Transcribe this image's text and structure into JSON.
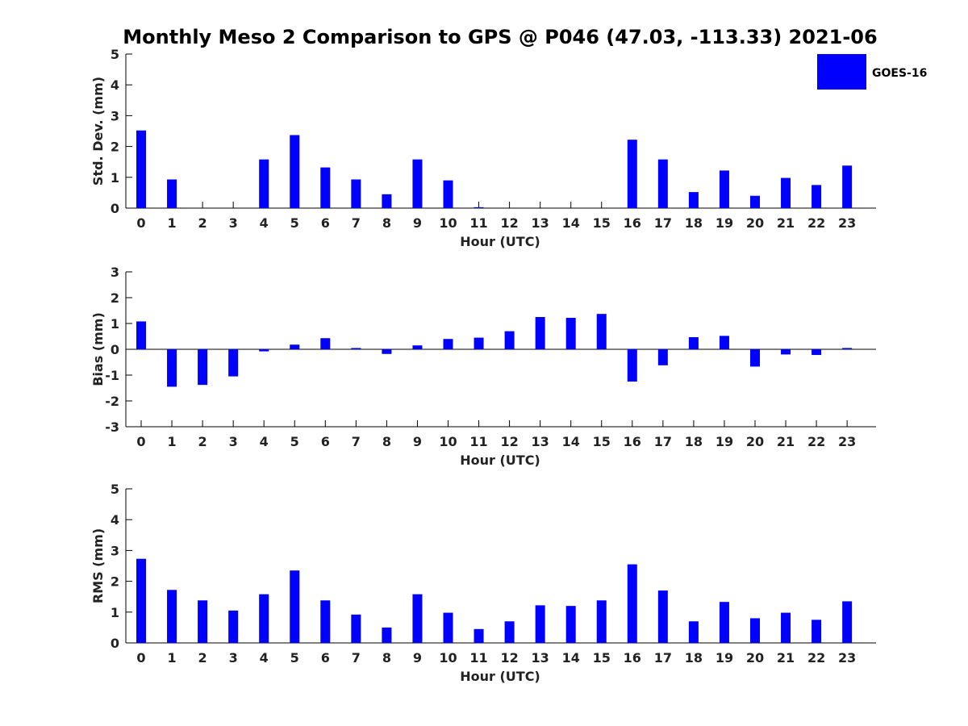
{
  "figure": {
    "title": "Monthly Meso 2 Comparison to GPS @ P046 (47.03, -113.33) 2021-06",
    "legend": {
      "label": "GOES-16",
      "position": "top-right"
    }
  },
  "colors": {
    "bar": "#0000ff",
    "axis": "#000000",
    "text": "#222222",
    "background": "#ffffff"
  },
  "chart_data": [
    {
      "type": "bar",
      "xlabel": "Hour (UTC)",
      "ylabel": "Std. Dev. (mm)",
      "categories": [
        "0",
        "1",
        "2",
        "3",
        "4",
        "5",
        "6",
        "7",
        "8",
        "9",
        "10",
        "11",
        "12",
        "13",
        "14",
        "15",
        "16",
        "17",
        "18",
        "19",
        "20",
        "21",
        "22",
        "23"
      ],
      "series": [
        {
          "name": "GOES-16",
          "values": [
            2.52,
            0.93,
            0,
            0,
            1.58,
            2.37,
            1.32,
            0.93,
            0.45,
            1.58,
            0.9,
            0.03,
            0,
            0,
            0,
            0,
            2.22,
            1.58,
            0.52,
            1.22,
            0.4,
            0.98,
            0.75,
            1.38
          ]
        }
      ],
      "ylim": [
        0,
        5
      ],
      "yticks": [
        0,
        1,
        2,
        3,
        4,
        5
      ],
      "grid": false
    },
    {
      "type": "bar",
      "xlabel": "Hour (UTC)",
      "ylabel": "Bias (mm)",
      "categories": [
        "0",
        "1",
        "2",
        "3",
        "4",
        "5",
        "6",
        "7",
        "8",
        "9",
        "10",
        "11",
        "12",
        "13",
        "14",
        "15",
        "16",
        "17",
        "18",
        "19",
        "20",
        "21",
        "22",
        "23"
      ],
      "series": [
        {
          "name": "GOES-16",
          "values": [
            1.08,
            -1.45,
            -1.38,
            -1.05,
            -0.08,
            0.18,
            0.43,
            0.05,
            -0.18,
            0.15,
            0.4,
            0.45,
            0.7,
            1.25,
            1.22,
            1.37,
            -1.25,
            -0.62,
            0.47,
            0.52,
            -0.67,
            -0.2,
            -0.22,
            0.05
          ]
        }
      ],
      "ylim": [
        -3,
        3
      ],
      "yticks": [
        -3,
        -2,
        -1,
        0,
        1,
        2,
        3
      ],
      "grid": false,
      "zero_line": true
    },
    {
      "type": "bar",
      "xlabel": "Hour (UTC)",
      "ylabel": "RMS (mm)",
      "categories": [
        "0",
        "1",
        "2",
        "3",
        "4",
        "5",
        "6",
        "7",
        "8",
        "9",
        "10",
        "11",
        "12",
        "13",
        "14",
        "15",
        "16",
        "17",
        "18",
        "19",
        "20",
        "21",
        "22",
        "23"
      ],
      "series": [
        {
          "name": "GOES-16",
          "values": [
            2.73,
            1.72,
            1.38,
            1.05,
            1.58,
            2.35,
            1.38,
            0.92,
            0.5,
            1.58,
            0.98,
            0.45,
            0.7,
            1.22,
            1.2,
            1.38,
            2.55,
            1.7,
            0.7,
            1.33,
            0.8,
            0.98,
            0.75,
            1.35
          ]
        }
      ],
      "ylim": [
        0,
        5
      ],
      "yticks": [
        0,
        1,
        2,
        3,
        4,
        5
      ],
      "grid": false
    }
  ]
}
